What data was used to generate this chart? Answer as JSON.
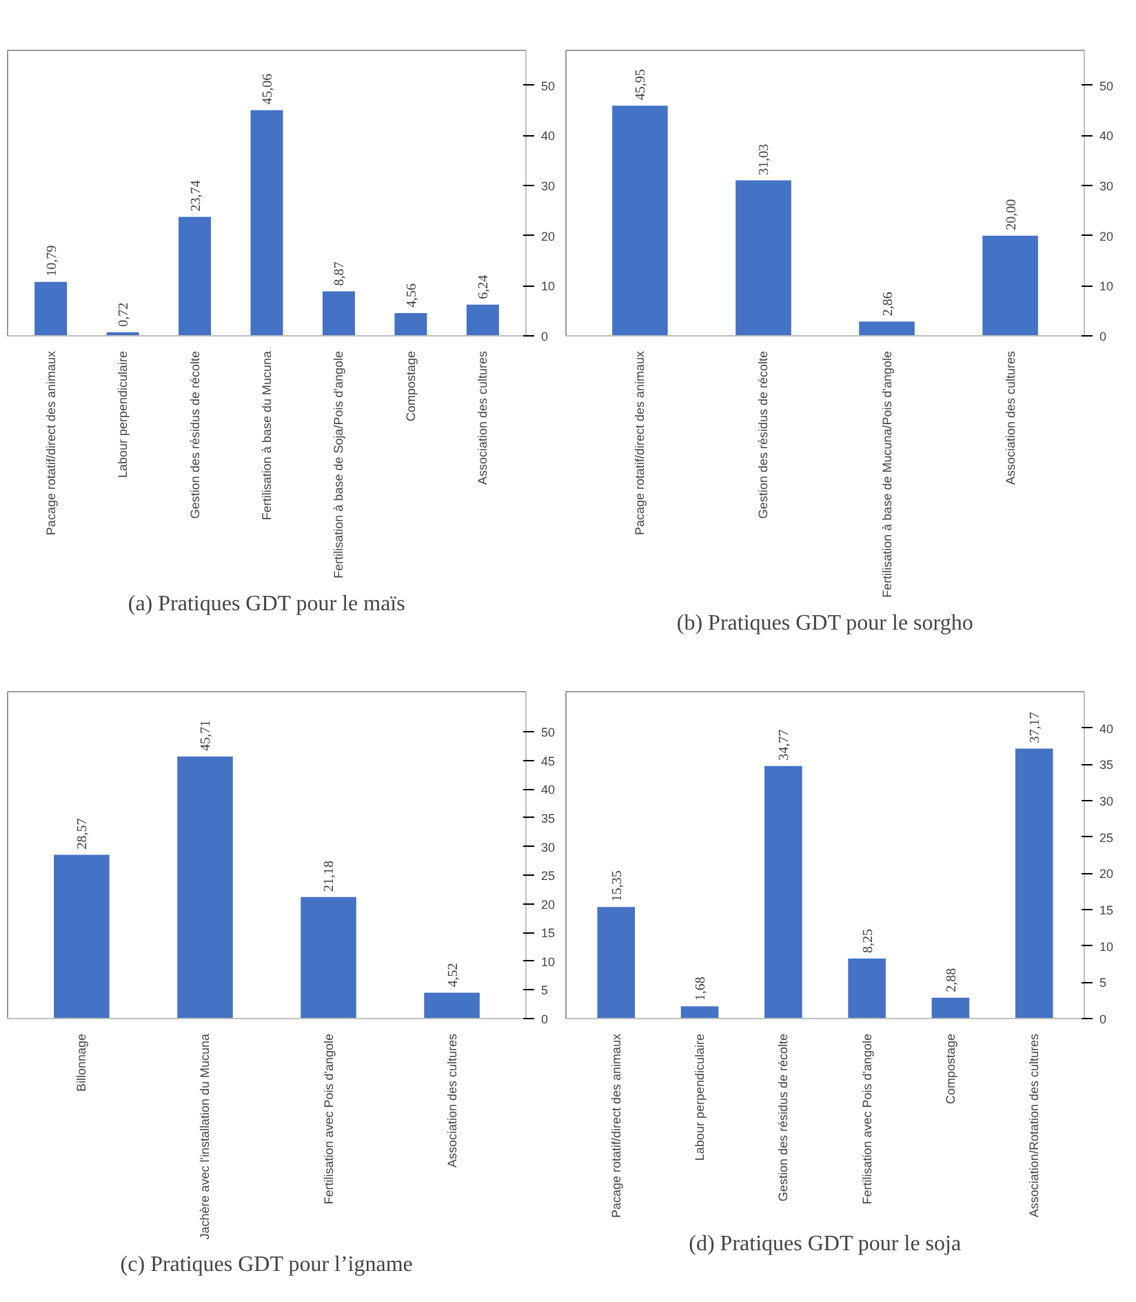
{
  "chart_data": [
    {
      "type": "bar",
      "title": "(a) Pratiques GDT pour le maïs",
      "categories": [
        "Pacage rotatif/direct des animaux",
        "Labour perpendiculaire",
        "Gestion des résidus de récolte",
        "Fertilisation à base du Mucuna",
        "Fertilisation à base de Soja/Pois d'angole",
        "Compostage",
        "Association des cultures"
      ],
      "values": [
        10.79,
        0.72,
        23.74,
        45.06,
        8.87,
        4.56,
        6.24
      ],
      "value_labels": [
        "10,79",
        "0,72",
        "23,74",
        "45,06",
        "8,87",
        "4,56",
        "6,24"
      ],
      "color": "#4472c4",
      "ylim": [
        0,
        57
      ],
      "yticks": [
        0,
        10,
        20,
        30,
        40,
        50
      ]
    },
    {
      "type": "bar",
      "title": "(b) Pratiques GDT pour le sorgho",
      "categories": [
        "Pacage rotatif/direct des animaux",
        "Gestion des résidus de récolte",
        "Fertilisation à base de Mucuna/Pois d'angole",
        "Association des cultures"
      ],
      "values": [
        45.95,
        31.03,
        2.86,
        20.0
      ],
      "value_labels": [
        "45,95",
        "31,03",
        "2,86",
        "20,00"
      ],
      "color": "#4472c4",
      "ylim": [
        0,
        57
      ],
      "yticks": [
        0,
        10,
        20,
        30,
        40,
        50
      ]
    },
    {
      "type": "bar",
      "title": "(c) Pratiques GDT pour l’igname",
      "categories": [
        "Billonnage",
        "Jachère avec l'installation du Mucuna",
        "Fertilisation avec Pois d'angole",
        "Association des cultures"
      ],
      "values": [
        28.57,
        45.71,
        21.18,
        4.52
      ],
      "value_labels": [
        "28,57",
        "45,71",
        "21,18",
        "4,52"
      ],
      "color": "#4472c4",
      "ylim": [
        0,
        57
      ],
      "yticks": [
        0,
        5,
        10,
        15,
        20,
        25,
        30,
        35,
        40,
        45,
        50
      ]
    },
    {
      "type": "bar",
      "title": "(d) Pratiques GDT pour le soja",
      "categories": [
        "Pacage rotatif/direct des animaux",
        "Labour perpendiculaire",
        "Gestion des résidus de récolte",
        "Fertilisation avec Pois d'angole",
        "Compostage",
        "Association/Rotation des cultures"
      ],
      "values": [
        15.35,
        1.68,
        34.77,
        8.25,
        2.88,
        37.17
      ],
      "value_labels": [
        "15,35",
        "1,68",
        "34,77",
        "8,25",
        "2,88",
        "37,17"
      ],
      "color": "#4472c4",
      "ylim": [
        0,
        45
      ],
      "yticks": [
        0,
        5,
        10,
        15,
        20,
        25,
        30,
        35,
        40
      ]
    }
  ]
}
